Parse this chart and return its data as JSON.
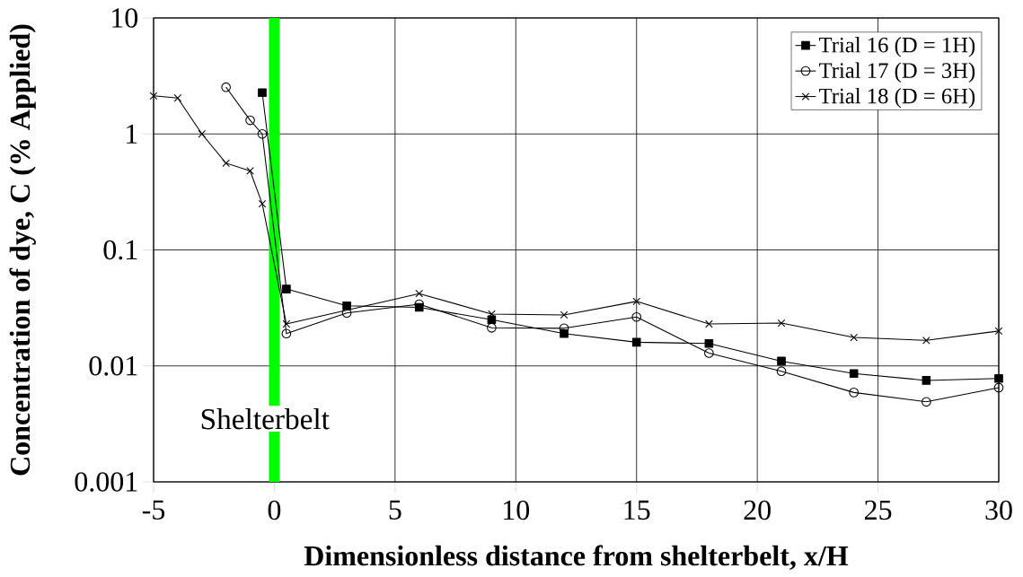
{
  "chart_data": {
    "type": "line",
    "xlabel": "Dimensionless distance from shelterbelt, x/H",
    "ylabel": "Concentration of dye, C (% Applied)",
    "xlim": [
      -5,
      30
    ],
    "xticks": [
      -5,
      0,
      5,
      10,
      15,
      20,
      25,
      30
    ],
    "ylim": [
      0.001,
      10
    ],
    "yticks": [
      0.001,
      0.01,
      0.1,
      1,
      10
    ],
    "log": "y",
    "grid": true,
    "legend": "top right",
    "line_style": "solid",
    "series": [
      {
        "name": "Trial 16 (D = 1H)",
        "color": "#000000",
        "marker": "square",
        "x": [
          -0.5,
          0.5,
          3,
          6,
          9,
          12,
          15,
          18,
          21,
          24,
          27,
          30
        ],
        "values": [
          2.27,
          0.046,
          0.033,
          0.032,
          0.025,
          0.019,
          0.016,
          0.0156,
          0.011,
          0.0086,
          0.0075,
          0.0078
        ]
      },
      {
        "name": "Trial 17 (D = 3H)",
        "color": "#000000",
        "marker": "circle",
        "x": [
          -2,
          -1,
          -0.5,
          0.5,
          3,
          6,
          9,
          12,
          15,
          18,
          21,
          24,
          27,
          30
        ],
        "values": [
          2.53,
          1.31,
          1.0,
          0.019,
          0.0286,
          0.034,
          0.0213,
          0.0211,
          0.0264,
          0.0129,
          0.009,
          0.0059,
          0.0049,
          0.0065
        ]
      },
      {
        "name": "Trial 18 (D = 6H)",
        "color": "#000000",
        "marker": "cross",
        "x": [
          -5,
          -4,
          -3,
          -2,
          -1,
          -0.5,
          0.5,
          6,
          9,
          12,
          15,
          18,
          21,
          24,
          27,
          30
        ],
        "values": [
          2.13,
          2.04,
          1.0,
          0.56,
          0.48,
          0.25,
          0.023,
          0.042,
          0.028,
          0.0275,
          0.036,
          0.023,
          0.0234,
          0.0176,
          0.0166,
          0.02
        ]
      }
    ],
    "ref_lines": [
      {
        "axis": "x",
        "value": 0,
        "label": "Shelterbelt",
        "color": "#00ff00"
      }
    ]
  }
}
